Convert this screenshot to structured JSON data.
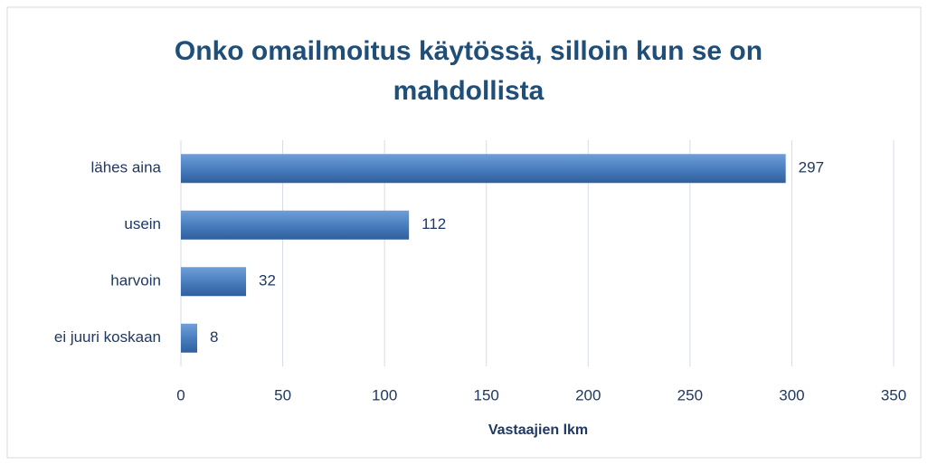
{
  "chart_data": {
    "type": "bar",
    "orientation": "horizontal",
    "title": "Onko omailmoitus käytössä, silloin kun se on mahdollista",
    "x_label": "Vastaajien lkm",
    "categories": [
      "lähes aina",
      "usein",
      "harvoin",
      "ei juuri koskaan"
    ],
    "values": [
      297,
      112,
      32,
      8
    ],
    "color": "#4a7ebf",
    "xlim": [
      0,
      350
    ],
    "xticks": [
      0,
      50,
      100,
      150,
      200,
      250,
      300,
      350
    ],
    "grid": true
  }
}
